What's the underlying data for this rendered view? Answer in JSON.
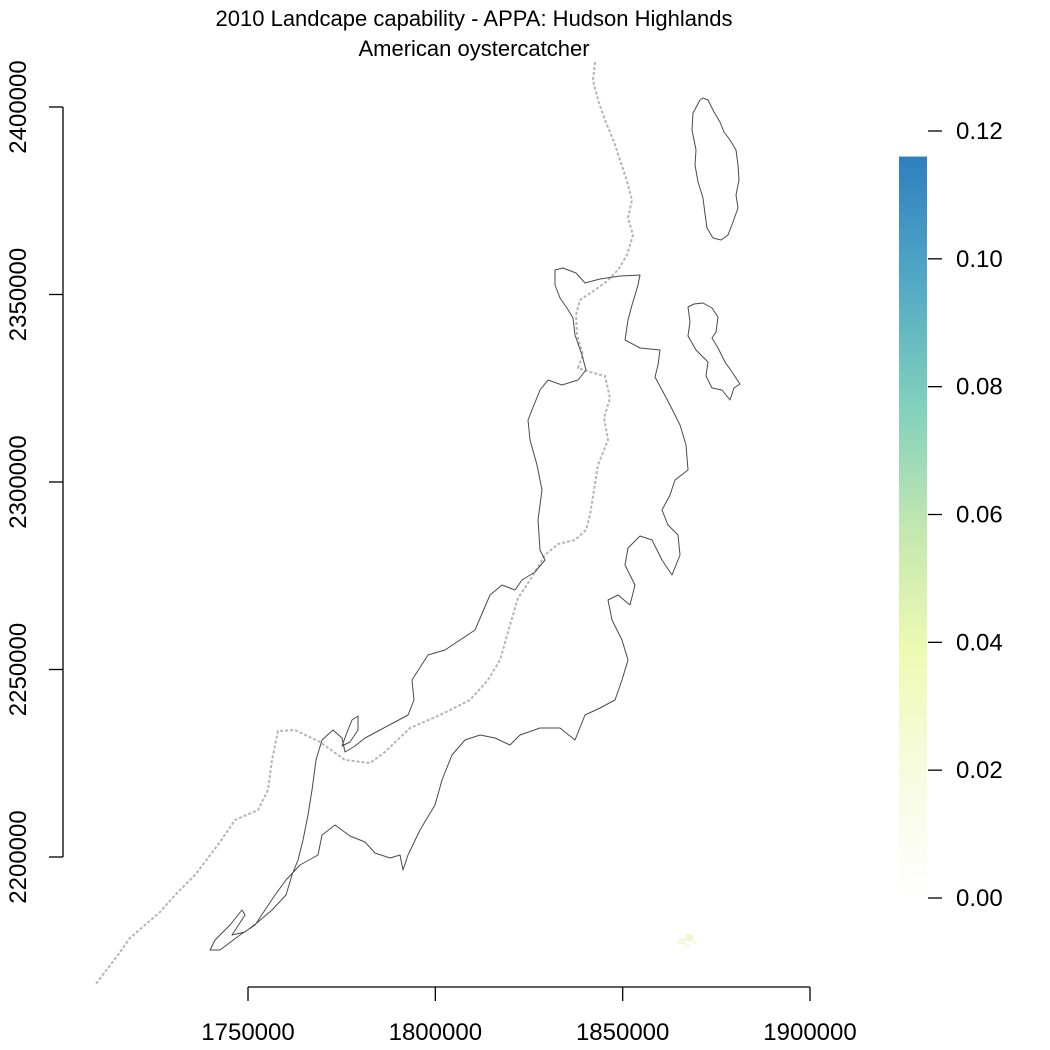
{
  "title": "2010 Landcape capability - APPA: Hudson Highlands",
  "subtitle": "American oystercatcher",
  "x_axis": {
    "ticks": [
      "1750000",
      "1800000",
      "1850000",
      "1900000"
    ]
  },
  "y_axis": {
    "ticks": [
      "2200000",
      "2250000",
      "2300000",
      "2350000",
      "2400000"
    ]
  },
  "legend": {
    "ticks": [
      "0.00",
      "0.02",
      "0.04",
      "0.06",
      "0.08",
      "0.10",
      "0.12"
    ],
    "range": [
      0,
      0.12
    ],
    "max_value": 0.116,
    "colors": [
      "#ffffff",
      "#f7fbe0",
      "#eefab2",
      "#c2e7b0",
      "#7fd0bd",
      "#52a8c5",
      "#2f7fbf"
    ]
  },
  "chart_data": {
    "type": "heatmap",
    "title": "2010 Landcape capability - APPA: Hudson Highlands",
    "subtitle": "American oystercatcher",
    "x_ticks": [
      1750000,
      1800000,
      1850000,
      1900000
    ],
    "y_ticks": [
      2200000,
      2250000,
      2300000,
      2350000,
      2400000
    ],
    "xlim": [
      1750000,
      1900000
    ],
    "ylim": [
      2200000,
      2400000
    ],
    "value_range": [
      0,
      0.12
    ],
    "legend_position": "right"
  }
}
